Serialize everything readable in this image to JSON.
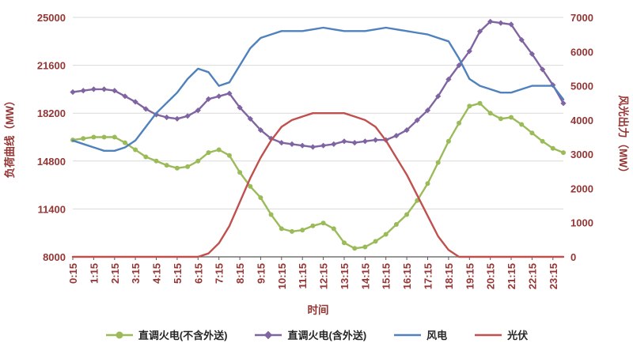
{
  "chart_data": {
    "type": "line",
    "title": "",
    "xlabel": "时间",
    "left_axis": {
      "label": "负荷曲线（MW）",
      "min": 8000,
      "max": 25000,
      "ticks": [
        8000,
        11400,
        14800,
        18200,
        21600,
        25000
      ]
    },
    "right_axis": {
      "label": "风光出力（MW）",
      "min": 0,
      "max": 7000,
      "ticks": [
        0,
        1000,
        2000,
        3000,
        4000,
        5000,
        6000,
        7000
      ]
    },
    "x_labels": [
      "0:15",
      "1:15",
      "2:15",
      "3:15",
      "4:15",
      "5:15",
      "6:15",
      "7:15",
      "8:15",
      "9:15",
      "10:15",
      "11:15",
      "12:15",
      "13:15",
      "14:15",
      "15:15",
      "16:15",
      "17:15",
      "18:15",
      "19:15",
      "20:15",
      "21:15",
      "22:15",
      "23:15"
    ],
    "x_resolution": "30min",
    "grid": true,
    "legend_position": "bottom",
    "style": {
      "text_color": "#943634",
      "grid_color": "#d9d9d9",
      "axis_line_color": "#595959",
      "background": "#ffffff"
    },
    "series": [
      {
        "name": "直调火电(不含外送)",
        "axis": "left",
        "color": "#9bbb59",
        "marker": "circle",
        "values": [
          16300,
          16400,
          16500,
          16500,
          16500,
          16100,
          15600,
          15100,
          14800,
          14500,
          14300,
          14400,
          14800,
          15400,
          15600,
          15200,
          14000,
          13000,
          12200,
          11000,
          10000,
          9800,
          9900,
          10200,
          10400,
          10000,
          9000,
          8600,
          8700,
          9100,
          9600,
          10300,
          11000,
          12000,
          13200,
          14700,
          16200,
          17500,
          18700,
          18900,
          18200,
          17800,
          17900,
          17400,
          16800,
          16200,
          15700,
          15400
        ]
      },
      {
        "name": "直调火电(含外送)",
        "axis": "left",
        "color": "#8064a2",
        "marker": "diamond",
        "values": [
          19700,
          19800,
          19900,
          19900,
          19800,
          19400,
          19000,
          18500,
          18100,
          17900,
          17800,
          18000,
          18400,
          19200,
          19400,
          19600,
          18600,
          17800,
          17000,
          16400,
          16100,
          16000,
          15900,
          15800,
          15900,
          16000,
          16200,
          16100,
          16200,
          16300,
          16300,
          16600,
          17000,
          17700,
          18400,
          19400,
          20600,
          21600,
          22600,
          24000,
          24700,
          24600,
          24500,
          23400,
          22400,
          21300,
          20200,
          18900
        ]
      },
      {
        "name": "风电",
        "axis": "right",
        "color": "#4f81bd",
        "marker": "none",
        "values": [
          3400,
          3300,
          3200,
          3100,
          3100,
          3200,
          3400,
          3800,
          4200,
          4500,
          4800,
          5200,
          5500,
          5400,
          5000,
          5100,
          5600,
          6100,
          6400,
          6500,
          6600,
          6600,
          6600,
          6650,
          6700,
          6650,
          6600,
          6600,
          6600,
          6650,
          6700,
          6650,
          6600,
          6550,
          6500,
          6400,
          6300,
          5800,
          5200,
          5000,
          4900,
          4800,
          4800,
          4900,
          5000,
          5000,
          5000,
          4600
        ]
      },
      {
        "name": "光伏",
        "axis": "right",
        "color": "#c0504d",
        "marker": "none",
        "values": [
          0,
          0,
          0,
          0,
          0,
          0,
          0,
          0,
          0,
          0,
          0,
          0,
          0,
          100,
          400,
          900,
          1600,
          2300,
          2900,
          3400,
          3800,
          4000,
          4100,
          4200,
          4200,
          4200,
          4200,
          4100,
          4000,
          3800,
          3400,
          2900,
          2400,
          1800,
          1200,
          600,
          200,
          0,
          0,
          0,
          0,
          0,
          0,
          0,
          0,
          0,
          0,
          0
        ]
      }
    ]
  }
}
